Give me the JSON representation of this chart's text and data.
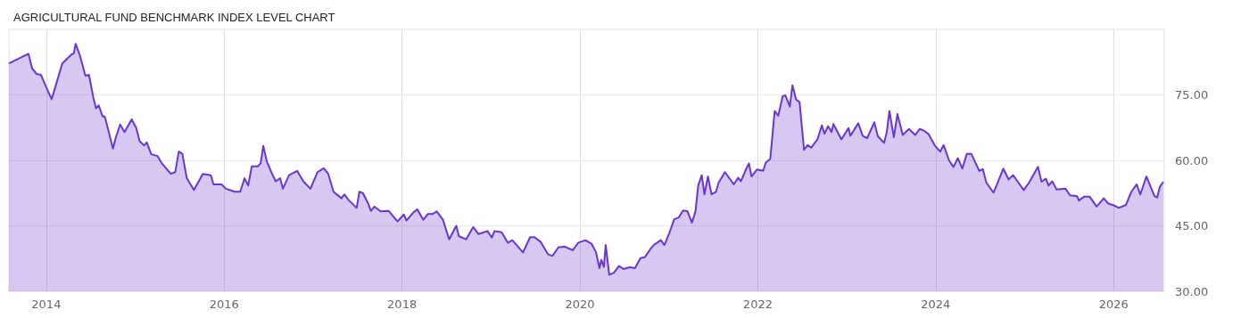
{
  "chart_data": {
    "type": "area",
    "title": "AGRICULTURAL FUND BENCHMARK INDEX LEVEL CHART",
    "xlim": [
      2013.58,
      2026.57
    ],
    "xticks": [
      2014,
      2016,
      2018,
      2020,
      2022,
      2024,
      2026
    ],
    "ylim": [
      30,
      90
    ],
    "yticks": [
      {
        "value": 30,
        "label": "30.00"
      },
      {
        "value": 45,
        "label": "45.00"
      },
      {
        "value": 60,
        "label": "60.00"
      },
      {
        "value": 75,
        "label": "75.00"
      }
    ],
    "grid": true,
    "marker": "none",
    "line_style": "solid",
    "series": [
      {
        "color": "#6a35cf",
        "x": [
          2013.58,
          2013.8,
          2013.84,
          2013.89,
          2013.94,
          2013.98,
          2014.06,
          2014.09,
          2014.18,
          2014.28,
          2014.31,
          2014.33,
          2014.38,
          2014.44,
          2014.48,
          2014.53,
          2014.56,
          2014.59,
          2014.63,
          2014.66,
          2014.75,
          2014.78,
          2014.83,
          2014.88,
          2014.96,
          2015.01,
          2015.05,
          2015.1,
          2015.13,
          2015.18,
          2015.25,
          2015.3,
          2015.4,
          2015.45,
          2015.49,
          2015.53,
          2015.58,
          2015.66,
          2015.76,
          2015.85,
          2015.88,
          2015.97,
          2016.02,
          2016.12,
          2016.18,
          2016.23,
          2016.27,
          2016.31,
          2016.38,
          2016.41,
          2016.44,
          2016.48,
          2016.53,
          2016.58,
          2016.63,
          2016.66,
          2016.73,
          2016.82,
          2016.89,
          2016.97,
          2017.05,
          2017.12,
          2017.17,
          2017.23,
          2017.32,
          2017.35,
          2017.4,
          2017.49,
          2017.52,
          2017.56,
          2017.62,
          2017.65,
          2017.69,
          2017.76,
          2017.85,
          2017.95,
          2018.02,
          2018.05,
          2018.12,
          2018.17,
          2018.24,
          2018.29,
          2018.34,
          2018.39,
          2018.46,
          2018.53,
          2018.61,
          2018.64,
          2018.72,
          2018.8,
          2018.86,
          2018.96,
          2019.01,
          2019.04,
          2019.12,
          2019.19,
          2019.24,
          2019.36,
          2019.44,
          2019.49,
          2019.56,
          2019.64,
          2019.69,
          2019.76,
          2019.83,
          2019.92,
          2019.98,
          2020.06,
          2020.13,
          2020.18,
          2020.22,
          2020.24,
          2020.27,
          2020.29,
          2020.33,
          2020.38,
          2020.44,
          2020.49,
          2020.56,
          2020.62,
          2020.68,
          2020.73,
          2020.79,
          2020.83,
          2020.88,
          2020.91,
          2020.95,
          2021.01,
          2021.06,
          2021.11,
          2021.16,
          2021.21,
          2021.26,
          2021.3,
          2021.33,
          2021.37,
          2021.4,
          2021.44,
          2021.48,
          2021.53,
          2021.56,
          2021.63,
          2021.73,
          2021.78,
          2021.81,
          2021.86,
          2021.9,
          2021.93,
          2021.99,
          2022.06,
          2022.09,
          2022.14,
          2022.19,
          2022.23,
          2022.28,
          2022.31,
          2022.36,
          2022.39,
          2022.43,
          2022.47,
          2022.49,
          2022.52,
          2022.56,
          2022.6,
          2022.67,
          2022.72,
          2022.75,
          2022.79,
          2022.83,
          2022.85,
          2022.94,
          2023.02,
          2023.04,
          2023.13,
          2023.18,
          2023.23,
          2023.31,
          2023.35,
          2023.42,
          2023.45,
          2023.48,
          2023.53,
          2023.57,
          2023.63,
          2023.7,
          2023.77,
          2023.82,
          2023.87,
          2023.92,
          2023.99,
          2024.05,
          2024.09,
          2024.15,
          2024.2,
          2024.25,
          2024.3,
          2024.35,
          2024.4,
          2024.49,
          2024.53,
          2024.57,
          2024.65,
          2024.69,
          2024.76,
          2024.82,
          2024.87,
          2024.92,
          2024.99,
          2025.05,
          2025.15,
          2025.19,
          2025.24,
          2025.27,
          2025.31,
          2025.36,
          2025.46,
          2025.51,
          2025.59,
          2025.61,
          2025.67,
          2025.73,
          2025.81,
          2025.89,
          2025.94,
          2025.99,
          2026.06,
          2026.14,
          2026.2,
          2026.26,
          2026.3,
          2026.37,
          2026.46,
          2026.49,
          2026.52,
          2026.56
        ],
        "values": [
          82.2,
          84.4,
          81.1,
          79.8,
          79.6,
          77.7,
          74.0,
          76.0,
          82.2,
          84.2,
          84.5,
          86.7,
          83.9,
          79.4,
          79.6,
          74.3,
          71.9,
          72.6,
          70.2,
          69.9,
          62.7,
          65.1,
          68.2,
          66.5,
          69.4,
          67.5,
          64.4,
          63.4,
          64.1,
          61.4,
          61.0,
          59.3,
          56.9,
          57.3,
          62.0,
          61.5,
          55.9,
          53.2,
          56.9,
          56.6,
          54.5,
          54.5,
          53.5,
          52.8,
          52.8,
          55.9,
          54.2,
          58.6,
          58.6,
          59.3,
          63.3,
          59.7,
          57.3,
          55.2,
          55.9,
          53.5,
          56.6,
          57.6,
          55.2,
          53.5,
          57.3,
          58.2,
          56.9,
          52.8,
          51.3,
          52.2,
          50.9,
          49.1,
          52.8,
          52.5,
          50.1,
          48.4,
          49.4,
          48.3,
          48.4,
          46.0,
          47.6,
          46.2,
          47.9,
          48.8,
          46.4,
          47.7,
          47.7,
          48.3,
          46.4,
          41.9,
          45.0,
          42.6,
          41.9,
          44.7,
          43.1,
          43.8,
          42.3,
          43.8,
          43.5,
          41.1,
          41.7,
          38.9,
          42.4,
          42.4,
          41.3,
          38.5,
          38.1,
          40.1,
          40.2,
          39.4,
          41.1,
          41.7,
          40.9,
          39.0,
          35.3,
          37.2,
          35.6,
          40.6,
          33.8,
          34.2,
          35.8,
          35.1,
          35.5,
          35.3,
          37.6,
          37.8,
          39.6,
          40.6,
          41.3,
          41.7,
          40.6,
          43.6,
          46.5,
          46.9,
          48.5,
          48.3,
          45.7,
          48.4,
          54.2,
          56.6,
          52.2,
          56.3,
          52.2,
          52.8,
          54.9,
          57.3,
          54.5,
          56.0,
          55.2,
          57.6,
          59.3,
          56.3,
          57.9,
          57.6,
          59.5,
          60.3,
          71.3,
          70.2,
          74.7,
          74.9,
          72.3,
          77.2,
          74.0,
          73.3,
          68.9,
          62.4,
          63.5,
          62.9,
          64.8,
          68.0,
          66.1,
          67.8,
          66.5,
          68.3,
          64.8,
          67.4,
          65.6,
          68.5,
          65.6,
          65.1,
          68.7,
          65.5,
          64.0,
          66.5,
          71.3,
          65.3,
          70.6,
          65.8,
          67.2,
          65.8,
          67.2,
          66.8,
          66.0,
          63.4,
          62.0,
          63.5,
          60.0,
          58.5,
          60.5,
          58.1,
          61.5,
          61.5,
          57.6,
          58.0,
          54.9,
          52.6,
          54.5,
          58.1,
          55.6,
          56.6,
          55.2,
          53.2,
          54.9,
          58.5,
          55.1,
          55.8,
          54.2,
          55.2,
          53.3,
          53.5,
          52.0,
          51.8,
          50.8,
          51.7,
          51.7,
          49.4,
          51.3,
          50.1,
          49.8,
          49.1,
          49.8,
          52.8,
          54.5,
          52.2,
          56.3,
          51.8,
          51.5,
          53.9,
          55.1
        ]
      }
    ]
  }
}
